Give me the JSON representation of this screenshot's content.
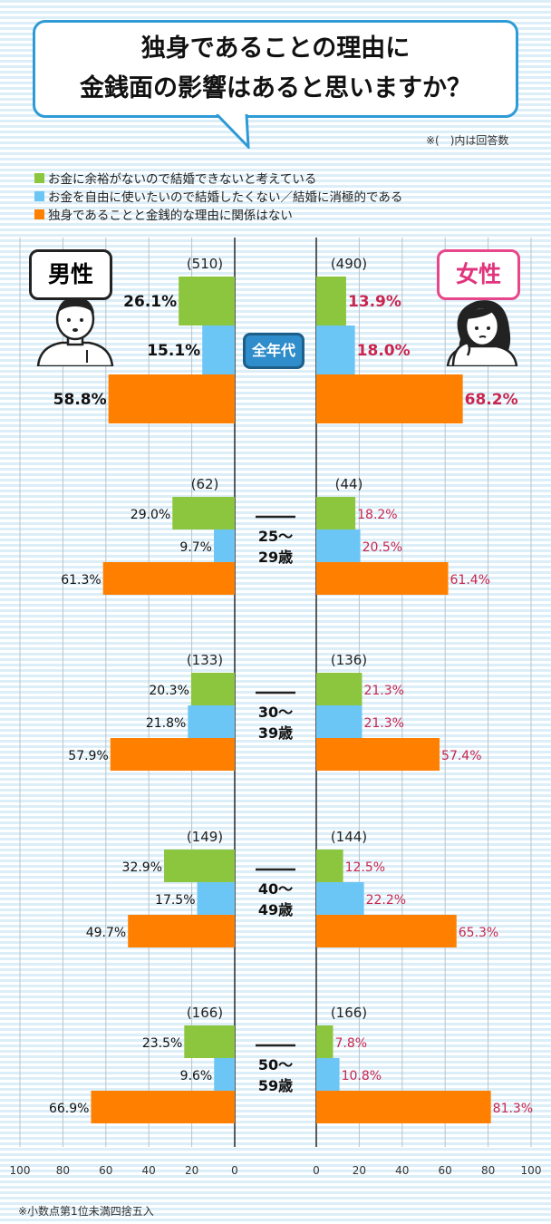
{
  "title": {
    "line1": "独身であることの理由に",
    "line2": "金銭面の影響はあると思いますか？"
  },
  "count_note": "※(　)内は回答数",
  "footnote": "※小数点第1位未満四捨五入",
  "labels": {
    "male": "男性",
    "female": "女性"
  },
  "colors": {
    "green": "#8cc63f",
    "blue": "#6cc6f5",
    "orange": "#ff8000",
    "female_text": "#c8264f",
    "badge_blue": "#2f8dcb"
  },
  "chart_data": {
    "type": "bar",
    "orientation": "horizontal-butterfly",
    "series": [
      {
        "name": "お金に余裕がないので結婚できないと考えている",
        "color": "#8cc63f"
      },
      {
        "name": "お金を自由に使いたいので結婚したくない／結婚に消極的である",
        "color": "#6cc6f5"
      },
      {
        "name": "独身であることと金銭的な理由に関係はない",
        "color": "#ff8000"
      }
    ],
    "xlim": [
      0,
      100
    ],
    "ticks": [
      "100",
      "80",
      "60",
      "40",
      "20",
      "0",
      "0",
      "20",
      "40",
      "60",
      "80",
      "100"
    ],
    "groups": [
      {
        "label": "全年代",
        "male_n": "(510)",
        "female_n": "(490)",
        "male": [
          26.1,
          15.1,
          58.8
        ],
        "female": [
          13.9,
          18.0,
          68.2
        ],
        "male_text": [
          "26.1%",
          "15.1%",
          "58.8%"
        ],
        "female_text": [
          "13.9%",
          "18.0%",
          "68.2%"
        ]
      },
      {
        "label": "25～29歳",
        "label_lines": [
          "25～",
          "29歳"
        ],
        "male_n": "(62)",
        "female_n": "(44)",
        "male": [
          29.0,
          9.7,
          61.3
        ],
        "female": [
          18.2,
          20.5,
          61.4
        ],
        "male_text": [
          "29.0%",
          "9.7%",
          "61.3%"
        ],
        "female_text": [
          "18.2%",
          "20.5%",
          "61.4%"
        ]
      },
      {
        "label": "30～39歳",
        "label_lines": [
          "30～",
          "39歳"
        ],
        "male_n": "(133)",
        "female_n": "(136)",
        "male": [
          20.3,
          21.8,
          57.9
        ],
        "female": [
          21.3,
          21.3,
          57.4
        ],
        "male_text": [
          "20.3%",
          "21.8%",
          "57.9%"
        ],
        "female_text": [
          "21.3%",
          "21.3%",
          "57.4%"
        ]
      },
      {
        "label": "40～49歳",
        "label_lines": [
          "40～",
          "49歳"
        ],
        "male_n": "(149)",
        "female_n": "(144)",
        "male": [
          32.9,
          17.5,
          49.7
        ],
        "female": [
          12.5,
          22.2,
          65.3
        ],
        "male_text": [
          "32.9%",
          "17.5%",
          "49.7%"
        ],
        "female_text": [
          "12.5%",
          "22.2%",
          "65.3%"
        ]
      },
      {
        "label": "50～59歳",
        "label_lines": [
          "50～",
          "59歳"
        ],
        "male_n": "(166)",
        "female_n": "(166)",
        "male": [
          23.5,
          9.6,
          66.9
        ],
        "female": [
          7.8,
          10.8,
          81.3
        ],
        "male_text": [
          "23.5%",
          "9.6%",
          "66.9%"
        ],
        "female_text": [
          "7.8%",
          "10.8%",
          "81.3%"
        ]
      }
    ]
  }
}
